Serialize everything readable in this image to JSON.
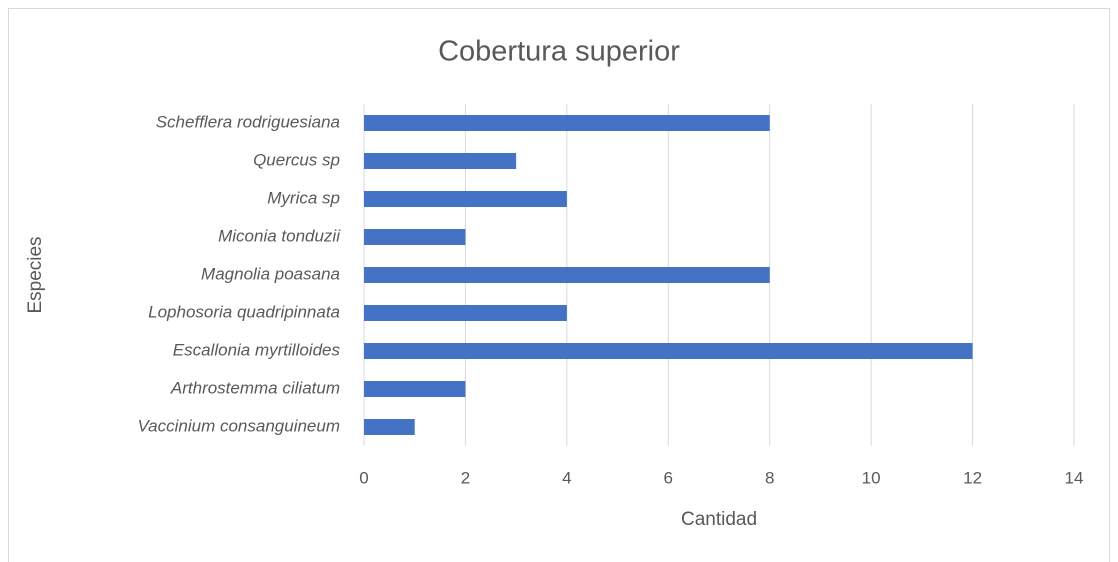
{
  "chart_data": {
    "type": "hbar",
    "title": "Cobertura superior",
    "x_label": "Cantidad",
    "y_label": "Especies",
    "categories": [
      "Schefflera rodriguesiana",
      "Quercus sp",
      "Myrica sp",
      "Miconia tonduzii",
      "Magnolia poasana",
      "Lophosoria quadripinnata",
      "Escallonia myrtilloides",
      "Arthrostemma ciliatum",
      "Vaccinium consanguineum"
    ],
    "values": [
      8,
      3,
      4,
      2,
      8,
      4,
      12,
      2,
      1
    ],
    "color": "#4472c4",
    "xlim": [
      0,
      14
    ],
    "xticks": [
      0,
      2,
      4,
      6,
      8,
      10,
      12,
      14
    ],
    "grid": true
  }
}
